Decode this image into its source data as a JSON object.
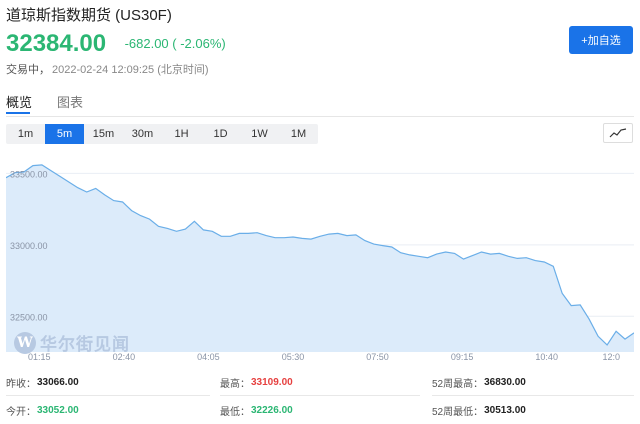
{
  "header": {
    "title": "道琼斯指数期货 (US30F)",
    "price": "32384.00",
    "change": "-682.00 ( -2.06%)",
    "status": "交易中，",
    "timestamp": "2022-02-24 12:09:25 (北京时间)",
    "add_button": "+加自选"
  },
  "tabs": [
    "概览",
    "图表"
  ],
  "periods": [
    "1m",
    "5m",
    "15m",
    "30m",
    "1H",
    "1D",
    "1W",
    "1M"
  ],
  "active_period": "5m",
  "watermark": {
    "mark": "W",
    "text": "华尔街见闻"
  },
  "colors": {
    "accent": "#1a73e8",
    "up": "#e6403f",
    "down": "#2bb673",
    "chart_line": "#6aaee8",
    "chart_fill": "#dcebfa"
  },
  "chart_data": {
    "type": "area",
    "x_labels": [
      "01:15",
      "02:40",
      "04:05",
      "05:30",
      "07:50",
      "09:15",
      "10:40",
      "12:0"
    ],
    "y_ticks": [
      "33500.00",
      "33000.00",
      "32500.00"
    ],
    "ylim": [
      32250,
      33650
    ],
    "grid": true,
    "x": [
      0,
      3,
      6,
      9,
      12,
      15,
      18,
      21,
      24,
      27,
      30,
      33,
      36,
      39,
      42,
      45,
      48,
      51,
      54,
      57,
      60,
      63,
      66,
      69,
      72,
      75,
      78,
      81,
      84,
      87,
      90,
      93,
      96,
      99,
      102,
      105,
      108,
      111,
      114,
      117,
      120,
      123,
      126,
      129,
      132,
      135,
      138,
      141,
      144,
      147,
      150,
      153,
      156,
      159,
      162,
      165,
      168,
      171,
      174,
      177,
      180,
      183,
      186,
      189,
      192,
      195,
      198,
      201,
      204,
      207,
      210
    ],
    "values": [
      33470,
      33505,
      33510,
      33555,
      33560,
      33520,
      33480,
      33440,
      33400,
      33370,
      33395,
      33350,
      33310,
      33300,
      33240,
      33205,
      33180,
      33130,
      33115,
      33095,
      33110,
      33165,
      33105,
      33095,
      33060,
      33060,
      33080,
      33080,
      33085,
      33065,
      33050,
      33050,
      33055,
      33045,
      33040,
      33060,
      33075,
      33080,
      33065,
      33070,
      33030,
      33005,
      32995,
      32985,
      32945,
      32930,
      32920,
      32910,
      32935,
      32950,
      32940,
      32900,
      32925,
      32950,
      32935,
      32940,
      32920,
      32905,
      32910,
      32890,
      32880,
      32850,
      32660,
      32575,
      32580,
      32480,
      32360,
      32300,
      32395,
      32340,
      32384
    ]
  },
  "stats": [
    {
      "label": "昨收：",
      "value": "33066.00",
      "color": "dark"
    },
    {
      "label": "最高：",
      "value": "33109.00",
      "color": "red"
    },
    {
      "label": "52周最高：",
      "value": "36830.00",
      "color": "dark"
    },
    {
      "label": "今开：",
      "value": "33052.00",
      "color": "green"
    },
    {
      "label": "最低：",
      "value": "32226.00",
      "color": "green"
    },
    {
      "label": "52周最低：",
      "value": "30513.00",
      "color": "dark"
    }
  ]
}
